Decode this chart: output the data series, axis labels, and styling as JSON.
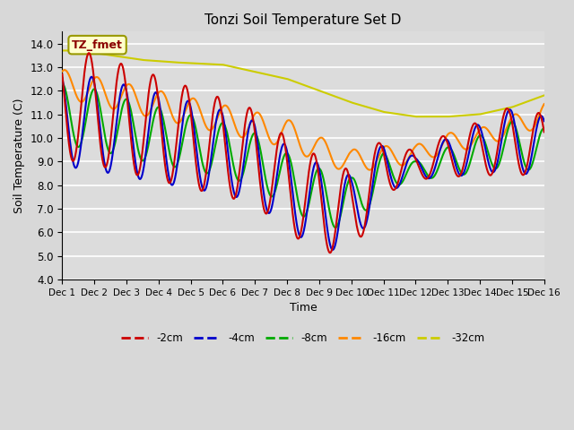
{
  "title": "Tonzi Soil Temperature Set D",
  "xlabel": "Time",
  "ylabel": "Soil Temperature (C)",
  "ylim": [
    4.0,
    14.5
  ],
  "xlim": [
    0,
    360
  ],
  "annotation_text": "TZ_fmet",
  "colors": {
    "-2cm": "#cc0000",
    "-4cm": "#0000cc",
    "-8cm": "#00aa00",
    "-16cm": "#ff8800",
    "-32cm": "#cccc00"
  },
  "legend_labels": [
    "-2cm",
    "-4cm",
    "-8cm",
    "-16cm",
    "-32cm"
  ],
  "xtick_positions": [
    0,
    24,
    48,
    72,
    96,
    120,
    144,
    168,
    192,
    216,
    240,
    264,
    288,
    312,
    336,
    360
  ],
  "xtick_labels": [
    "Dec 1",
    "Dec 2",
    "Dec 3",
    "Dec 4",
    "Dec 5",
    "Dec 6",
    "Dec 7",
    "Dec 8",
    "Dec 9",
    "Dec 10",
    "Dec 11",
    "Dec 12",
    "Dec 13",
    "Dec 14",
    "Dec 15",
    "Dec 16"
  ],
  "ytick_positions": [
    4.0,
    5.0,
    6.0,
    7.0,
    8.0,
    9.0,
    10.0,
    11.0,
    12.0,
    13.0,
    14.0
  ],
  "bg_color": "#dcdcdc",
  "fig_color": "#d8d8d8"
}
